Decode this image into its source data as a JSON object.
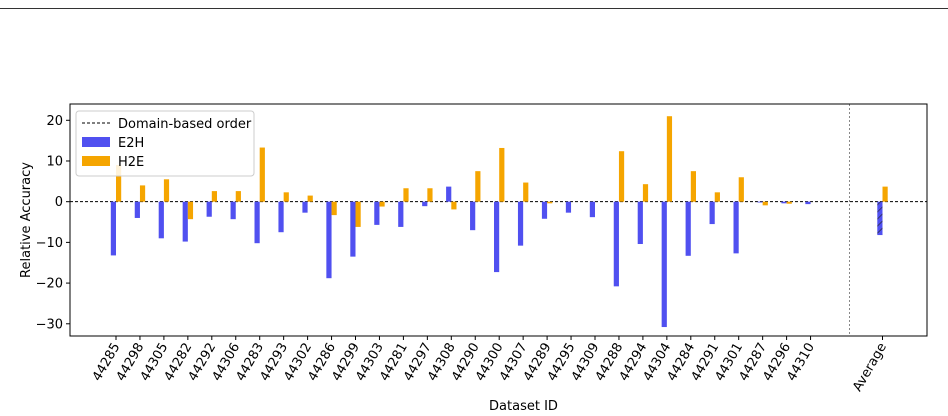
{
  "chart_data": {
    "type": "bar",
    "xlabel": "Dataset ID",
    "ylabel": "Relative Accuracy",
    "ylim": [
      -33,
      24
    ],
    "yticks": [
      -30,
      -20,
      -10,
      0,
      10,
      20
    ],
    "ytick_labels": [
      "−30",
      "−20",
      "−10",
      "0",
      "10",
      "20"
    ],
    "categories": [
      "44285",
      "44298",
      "44305",
      "44282",
      "44292",
      "44306",
      "44283",
      "44293",
      "44302",
      "44286",
      "44299",
      "44303",
      "44281",
      "44297",
      "44308",
      "44290",
      "44300",
      "44307",
      "44289",
      "44295",
      "44309",
      "44288",
      "44294",
      "44304",
      "44284",
      "44291",
      "44301",
      "44287",
      "44296",
      "44310"
    ],
    "average_label": "Average",
    "series": [
      {
        "name": "E2H",
        "color": "#5050f0",
        "values": [
          -13.2,
          -4.0,
          -9.0,
          -9.8,
          -3.7,
          -4.3,
          -10.2,
          -7.5,
          -2.7,
          -18.8,
          -13.5,
          -5.7,
          -6.2,
          -1.1,
          3.7,
          -7.0,
          -17.3,
          -10.8,
          -4.2,
          -2.7,
          -3.8,
          -20.8,
          -10.4,
          -30.8,
          -13.3,
          -5.5,
          -12.7,
          -0.2,
          -0.4,
          -0.6
        ],
        "average": -8.2
      },
      {
        "name": "H2E",
        "color": "#f5a500",
        "values": [
          9.0,
          4.0,
          5.5,
          -4.3,
          2.6,
          2.6,
          13.3,
          2.3,
          1.5,
          -3.3,
          -6.2,
          -1.2,
          3.3,
          3.3,
          -1.9,
          7.5,
          13.2,
          4.7,
          -0.4,
          0.0,
          0.0,
          12.4,
          4.3,
          21.0,
          7.5,
          2.3,
          6.0,
          -0.9,
          -0.5,
          0.0
        ],
        "average": 3.7
      }
    ],
    "reference_line": {
      "name": "Domain-based order",
      "y": 0,
      "style": "dashed"
    },
    "legend_placement": "top-left",
    "grid": false
  }
}
